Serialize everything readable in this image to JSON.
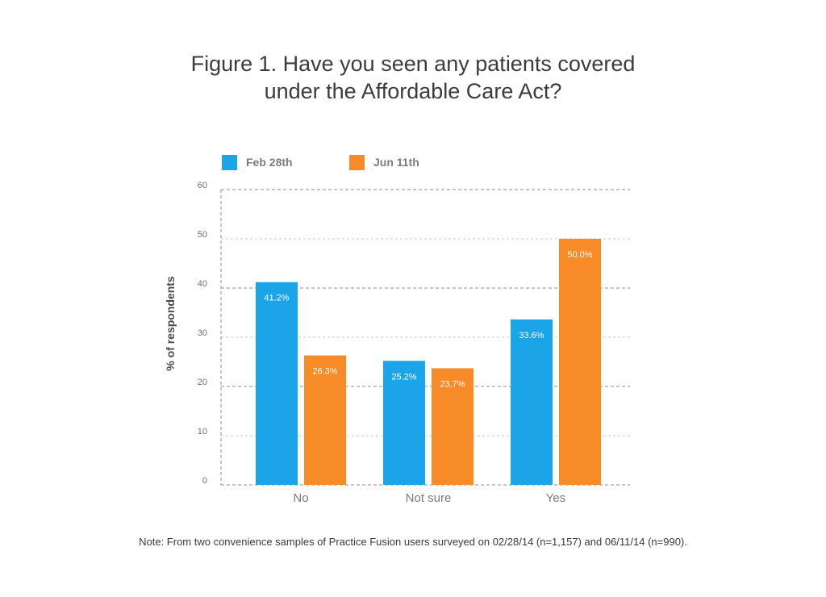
{
  "chart_data": {
    "type": "bar",
    "title_lines": [
      "Figure 1. Have you seen any patients covered",
      "under the Affordable Care Act?"
    ],
    "xlabel": "",
    "ylabel": "% of respondents",
    "ylim": [
      0,
      60
    ],
    "yticks": [
      0,
      10,
      20,
      30,
      40,
      50,
      60
    ],
    "categories": [
      "No",
      "Not sure",
      "Yes"
    ],
    "series": [
      {
        "name": "Feb 28th",
        "color": "#1ba4e8",
        "values": [
          41.2,
          25.2,
          33.6
        ],
        "labels": [
          "41.2%",
          "25.2%",
          "33.6%"
        ]
      },
      {
        "name": "Jun 11th",
        "color": "#f68b27",
        "values": [
          26.3,
          23.7,
          50.0
        ],
        "labels": [
          "26.3%",
          "23.7%",
          "50.0%"
        ]
      }
    ],
    "grid": true,
    "legend_position": "top-left",
    "note": "Note: From two convenience samples of Practice Fusion users surveyed on 02/28/14 (n=1,157) and 06/11/14 (n=990)."
  }
}
